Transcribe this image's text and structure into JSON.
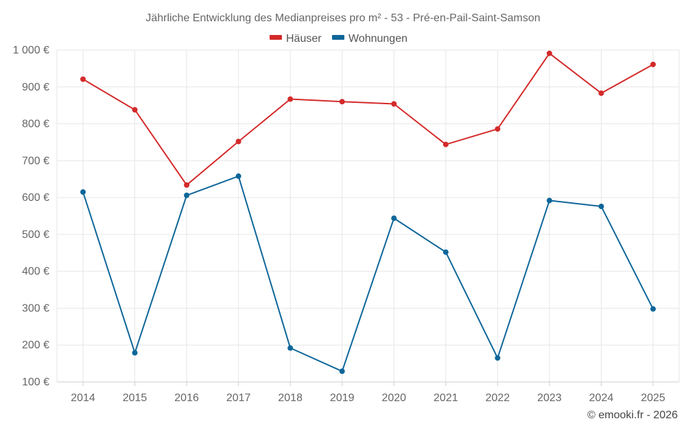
{
  "chart_data": {
    "type": "line",
    "title": "Jährliche Entwicklung des Medianpreises pro m² - 53 - Pré-en-Pail-Saint-Samson",
    "categories": [
      "2014",
      "2015",
      "2016",
      "2017",
      "2018",
      "2019",
      "2020",
      "2021",
      "2022",
      "2023",
      "2024",
      "2025"
    ],
    "series": [
      {
        "name": "Häuser",
        "color": "#d42a2a",
        "values": [
          921,
          838,
          634,
          752,
          867,
          860,
          854,
          744,
          786,
          991,
          883,
          961
        ]
      },
      {
        "name": "Wohnungen",
        "color": "#0e6699",
        "values": [
          615,
          179,
          606,
          658,
          192,
          129,
          544,
          452,
          165,
          592,
          576,
          298
        ]
      }
    ],
    "ylim": [
      100,
      1000
    ],
    "yticks": [
      100,
      200,
      300,
      400,
      500,
      600,
      700,
      800,
      900,
      1000
    ],
    "ytick_labels": [
      "100 €",
      "200 €",
      "300 €",
      "400 €",
      "500 €",
      "600 €",
      "700 €",
      "800 €",
      "900 €",
      "1 000 €"
    ],
    "xlabel": "",
    "ylabel": "",
    "grid": true,
    "legend_position": "top-center"
  },
  "credit": "© emooki.fr - 2026"
}
